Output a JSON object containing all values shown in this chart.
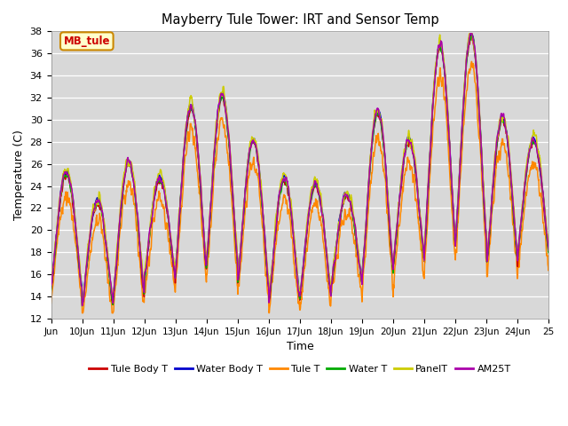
{
  "title": "Mayberry Tule Tower: IRT and Sensor Temp",
  "xlabel": "Time",
  "ylabel": "Temperature (C)",
  "ylim": [
    12,
    38
  ],
  "yticks": [
    12,
    14,
    16,
    18,
    20,
    22,
    24,
    26,
    28,
    30,
    32,
    34,
    36,
    38
  ],
  "xtick_labels": [
    "Jun",
    "10Jun",
    "11Jun",
    "12Jun",
    "13Jun",
    "14Jun",
    "15Jun",
    "16Jun",
    "17Jun",
    "18Jun",
    "19Jun",
    "20Jun",
    "21Jun",
    "22Jun",
    "23Jun",
    "24Jun",
    "25"
  ],
  "legend_labels": [
    "Tule Body T",
    "Water Body T",
    "Tule T",
    "Water T",
    "PanelT",
    "AM25T"
  ],
  "legend_colors": [
    "#cc0000",
    "#0000cc",
    "#ff8800",
    "#00aa00",
    "#cccc00",
    "#aa00aa"
  ],
  "tag_text": "MB_tule",
  "tag_bg": "#ffffcc",
  "tag_border": "#cc8800",
  "tag_text_color": "#cc0000",
  "bg_color": "#d8d8d8",
  "line_width": 1.1,
  "day_peak_heights": [
    25.0,
    22.5,
    26.0,
    24.5,
    31.0,
    32.0,
    28.0,
    24.5,
    24.0,
    23.0,
    30.5,
    28.0,
    36.5,
    37.5,
    30.0,
    28.0
  ],
  "day_night_lows": [
    14.5,
    13.0,
    14.0,
    15.5,
    16.5,
    17.0,
    15.0,
    13.5,
    14.0,
    15.0,
    16.0,
    17.0,
    18.5,
    19.0,
    17.0,
    18.0
  ]
}
